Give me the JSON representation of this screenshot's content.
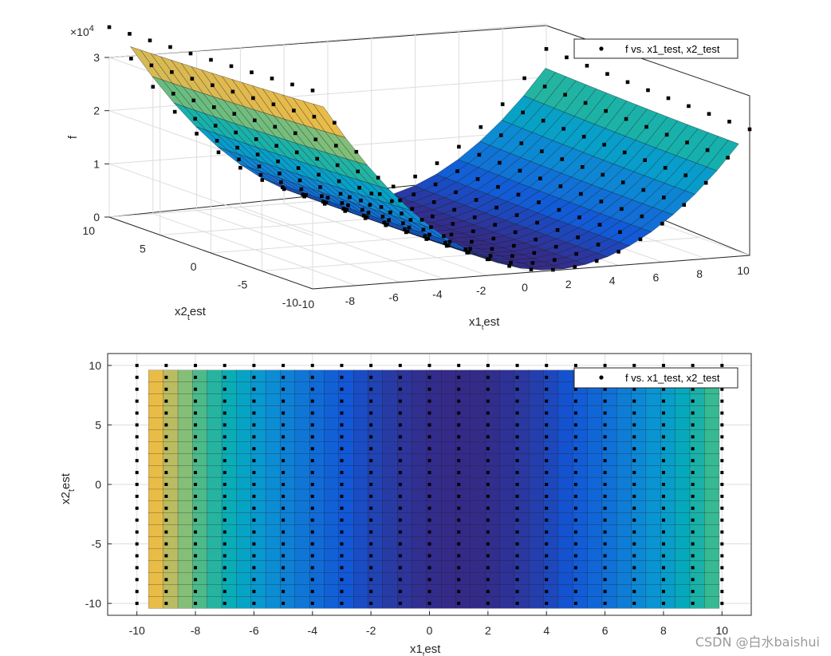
{
  "watermark": "CSDN @白水baishui",
  "colors": {
    "marker": "#000000",
    "grid": "#dcdcdc",
    "axis": "#262626"
  },
  "chart_data": [
    {
      "type": "surface3d",
      "x_ticks": [
        "-10",
        "-8",
        "-6",
        "-4",
        "-2",
        "0",
        "2",
        "4",
        "6",
        "8",
        "10"
      ],
      "y_ticks": [
        "10",
        "5",
        "0",
        "-5",
        "-10"
      ],
      "z_ticks": [
        "0",
        "1",
        "2",
        "3"
      ],
      "z_exponent_prefix": "×10",
      "z_exponent": "4",
      "xlabel_base": "x1",
      "xlabel_sub": "t",
      "xlabel_rest": "est",
      "ylabel_base": "x2",
      "ylabel_sub": "t",
      "ylabel_rest": "est",
      "zlabel": "f",
      "legend_label": "f vs. x1_test, x2_test",
      "xlim": [
        -10,
        10
      ],
      "ylim": [
        -10,
        10
      ],
      "zlim": [
        0,
        30000
      ],
      "legend_position": "top-right",
      "grid": true
    },
    {
      "type": "heatmap",
      "x_ticks": [
        "-10",
        "-8",
        "-6",
        "-4",
        "-2",
        "0",
        "2",
        "4",
        "6",
        "8",
        "10"
      ],
      "y_ticks": [
        "10",
        "5",
        "0",
        "-5",
        "-10"
      ],
      "xlabel_base": "x1",
      "xlabel_sub": "t",
      "xlabel_rest": "est",
      "ylabel_base": "x2",
      "ylabel_sub": "t",
      "ylabel_rest": "est",
      "legend_label": "f vs. x1_test, x2_test",
      "xlim": [
        -11,
        11
      ],
      "ylim": [
        -11,
        11
      ],
      "legend_position": "top-right",
      "grid": true
    }
  ]
}
